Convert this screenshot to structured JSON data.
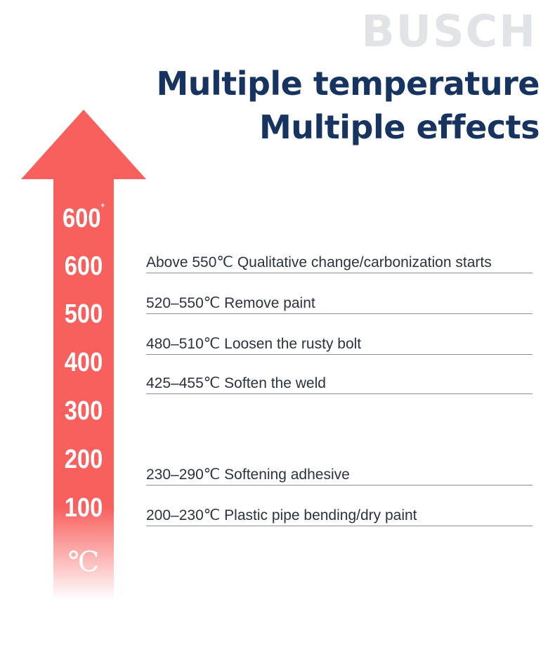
{
  "brand": "BUSCH",
  "headline": {
    "line1": "Multiple temperature",
    "line2": "Multiple effects"
  },
  "scale": {
    "top_label": "600",
    "top_sup": "+",
    "labels": [
      "600",
      "500",
      "400",
      "300",
      "200",
      "100"
    ],
    "unit": "℃"
  },
  "effects": [
    "Above 550℃ Qualitative change/carbonization starts",
    "520–550℃ Remove paint",
    "480–510℃ Loosen the rusty bolt",
    "425–455℃ Soften the weld",
    "230–290℃ Softening adhesive",
    "200–230℃ Plastic pipe bending/dry paint"
  ],
  "colors": {
    "arrow": "#f8605e",
    "headline": "#17335f",
    "brand": "#e1e3e7"
  }
}
